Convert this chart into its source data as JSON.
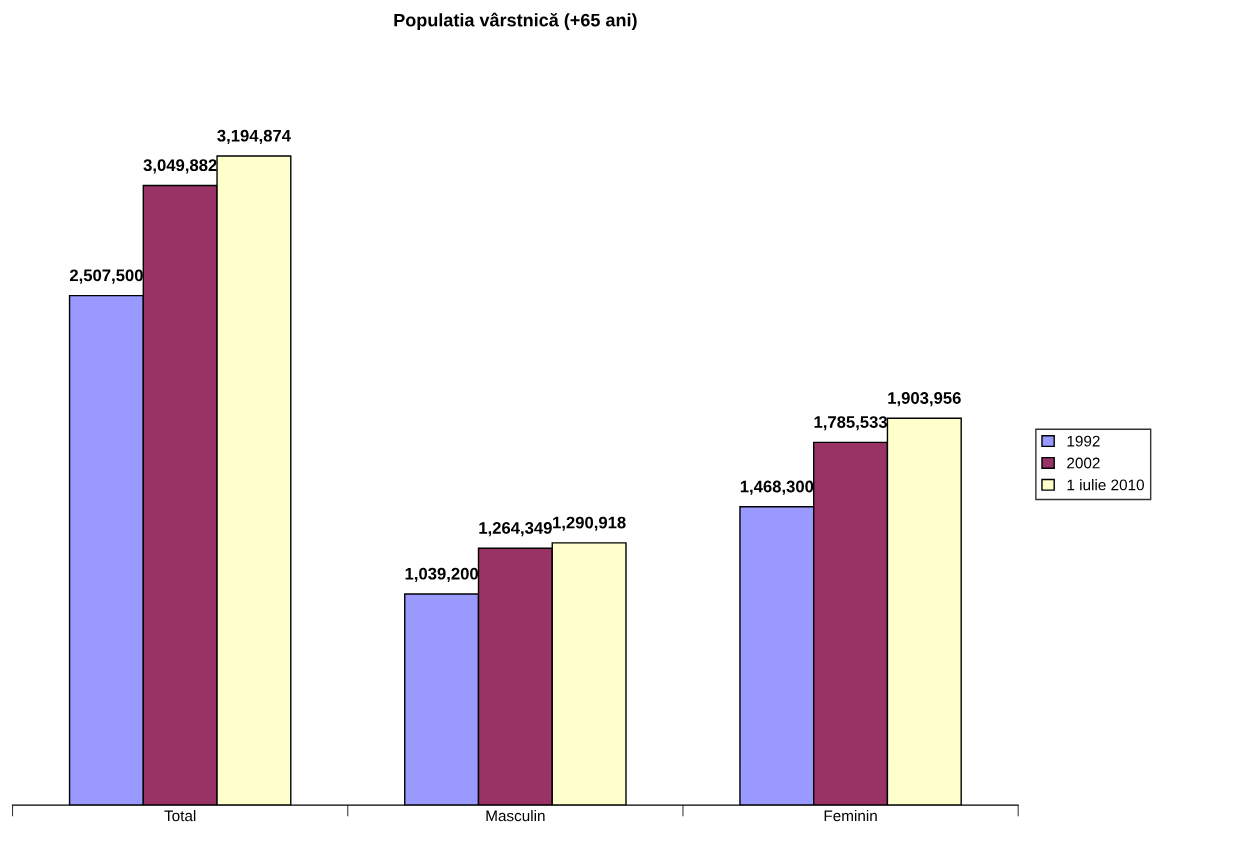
{
  "chart_data": {
    "type": "bar",
    "title": "Populatia vârstnică (+65 ani)",
    "categories": [
      "Total",
      "Masculin",
      "Feminin"
    ],
    "series": [
      {
        "name": "1992",
        "color": "#9999ff",
        "values": [
          2507500,
          1039200,
          1468300
        ],
        "value_labels": [
          "2,507,500",
          "1,039,200",
          "1,468,300"
        ]
      },
      {
        "name": "2002",
        "color": "#993366",
        "values": [
          3049882,
          1264349,
          1785533
        ],
        "value_labels": [
          "3,049,882",
          "1,264,349",
          "1,785,533"
        ]
      },
      {
        "name": "1 iulie 2010",
        "color": "#ffffcc",
        "values": [
          3194874,
          1290918,
          1903956
        ],
        "value_labels": [
          "3,194,874",
          "1,290,918",
          "1,903,956"
        ]
      }
    ],
    "legend": "right",
    "tick_labels": "x"
  }
}
